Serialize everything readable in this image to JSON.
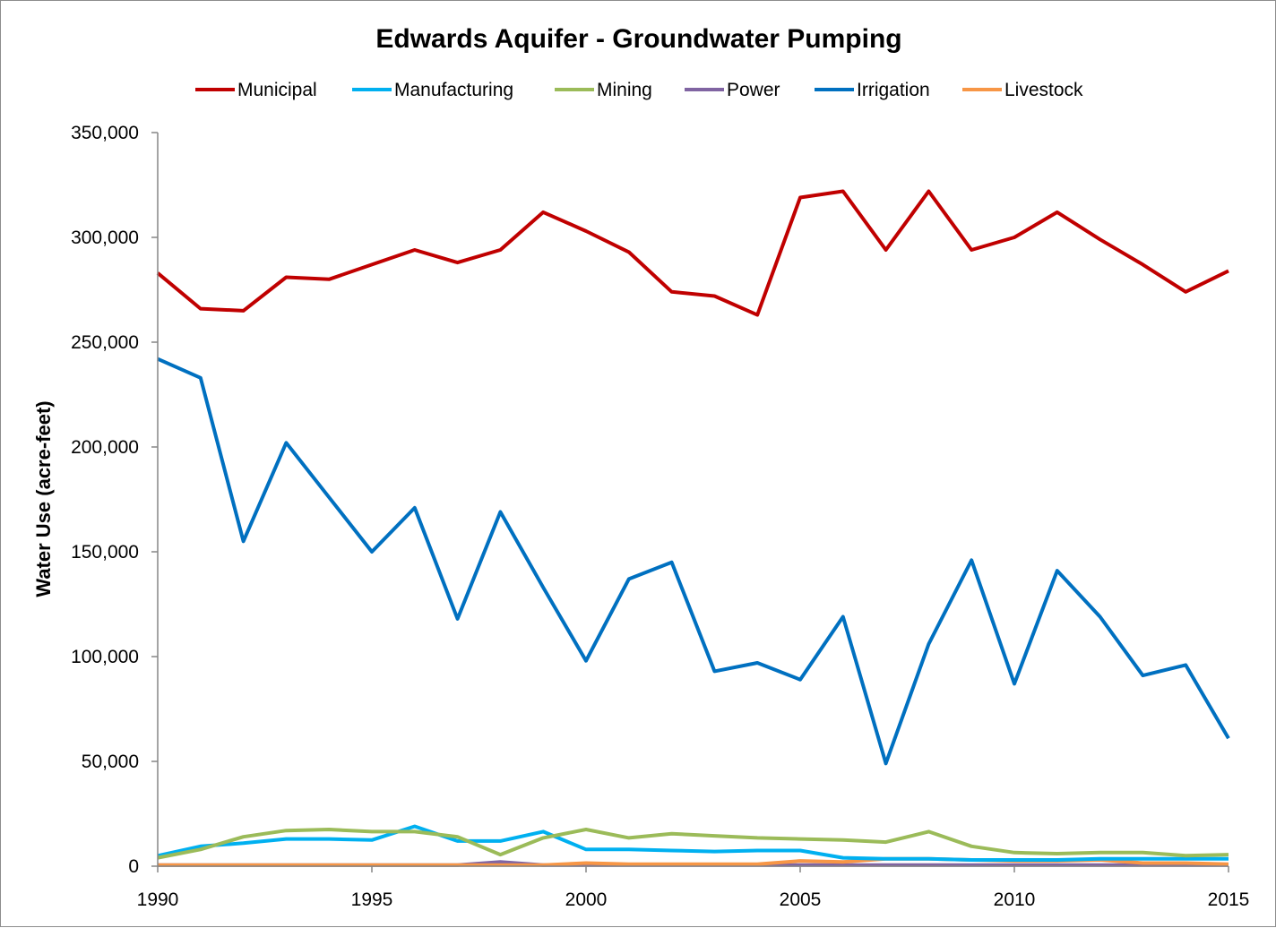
{
  "chart_data": {
    "type": "line",
    "title": "Edwards Aquifer - Groundwater Pumping",
    "xlabel": "",
    "ylabel": "Water Use (acre-feet)",
    "xlim": [
      1990,
      2015
    ],
    "ylim": [
      0,
      350000
    ],
    "x_ticks": [
      1990,
      1995,
      2000,
      2005,
      2010,
      2015
    ],
    "y_ticks": [
      0,
      50000,
      100000,
      150000,
      200000,
      250000,
      300000,
      350000
    ],
    "y_tick_labels": [
      "0",
      "50,000",
      "100,000",
      "150,000",
      "200,000",
      "250,000",
      "300,000",
      "350,000"
    ],
    "x_tick_labels": [
      "1990",
      "1995",
      "2000",
      "2005",
      "2010",
      "2015"
    ],
    "legend_position": "top",
    "grid": false,
    "x": [
      1990,
      1991,
      1992,
      1993,
      1994,
      1995,
      1996,
      1997,
      1998,
      1999,
      2000,
      2001,
      2002,
      2003,
      2004,
      2005,
      2006,
      2007,
      2008,
      2009,
      2010,
      2011,
      2012,
      2013,
      2014,
      2015
    ],
    "series": [
      {
        "name": "Municipal",
        "color": "#c00000",
        "values": [
          283000,
          266000,
          265000,
          281000,
          280000,
          287000,
          294000,
          288000,
          294000,
          312000,
          303000,
          293000,
          274000,
          272000,
          263000,
          319000,
          322000,
          294000,
          322000,
          294000,
          300000,
          312000,
          299000,
          287000,
          274000,
          284000
        ]
      },
      {
        "name": "Manufacturing",
        "color": "#00b0f0",
        "values": [
          5000,
          9500,
          11000,
          13000,
          13000,
          12500,
          19000,
          12000,
          12000,
          16500,
          8000,
          8000,
          7500,
          7000,
          7500,
          7500,
          4000,
          3500,
          3500,
          3000,
          3000,
          3000,
          3500,
          3500,
          3500,
          3500
        ]
      },
      {
        "name": "Mining",
        "color": "#9bbb59",
        "values": [
          4000,
          8000,
          14000,
          17000,
          17500,
          16500,
          16500,
          14000,
          5500,
          13500,
          17500,
          13500,
          15500,
          14500,
          13500,
          13000,
          12500,
          11500,
          16500,
          9500,
          6500,
          6000,
          6500,
          6500,
          5000,
          5500
        ]
      },
      {
        "name": "Power",
        "color": "#8064a2",
        "values": [
          500,
          500,
          500,
          500,
          500,
          500,
          500,
          500,
          2000,
          500,
          500,
          500,
          500,
          500,
          500,
          500,
          500,
          500,
          500,
          500,
          500,
          500,
          500,
          500,
          500,
          500
        ]
      },
      {
        "name": "Irrigation",
        "color": "#0070c0",
        "values": [
          242000,
          233000,
          155000,
          202000,
          176000,
          150000,
          171000,
          118000,
          169000,
          133000,
          98000,
          137000,
          145000,
          93000,
          97000,
          89000,
          119000,
          49000,
          106000,
          146000,
          87000,
          141000,
          119000,
          91000,
          96000,
          61000
        ]
      },
      {
        "name": "Livestock",
        "color": "#f79646",
        "values": [
          500,
          500,
          500,
          500,
          500,
          500,
          500,
          500,
          500,
          500,
          1500,
          1000,
          1000,
          1000,
          1000,
          2500,
          2000,
          3500,
          3500,
          3000,
          2500,
          2500,
          3000,
          1500,
          1500,
          1000
        ]
      }
    ]
  }
}
